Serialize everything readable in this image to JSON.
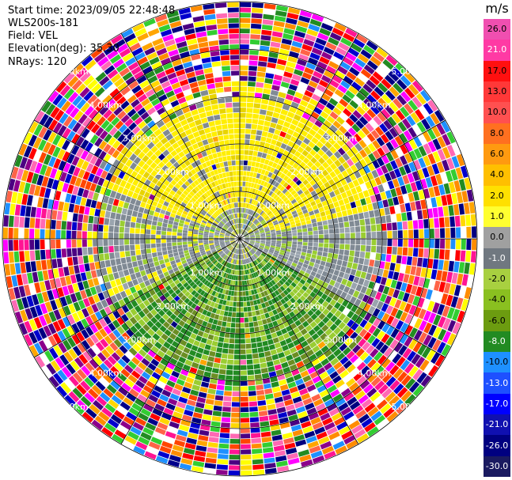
{
  "info": {
    "start_time": "Start time: 2023/09/05 22:48:48",
    "radar": "WLS200s-181",
    "field": "Field: VEL",
    "elevation": "Elevation(deg): 35.30",
    "nrays": "NRays: 120"
  },
  "colorbar": {
    "unit": "m/s",
    "ticks": [
      "26.0",
      "21.0",
      "17.0",
      "13.0",
      "10.0",
      "8.0",
      "6.0",
      "4.0",
      "2.0",
      "1.0",
      "0.0",
      "-1.0",
      "-2.0",
      "-4.0",
      "-6.0",
      "-8.0",
      "-10.0",
      "-13.0",
      "-17.0",
      "-21.0",
      "-26.0",
      "-30.0"
    ],
    "colors": [
      "#f04fb0",
      "#ff3aa4",
      "#ff1010",
      "#ff3838",
      "#ff5050",
      "#ff7020",
      "#ff9a10",
      "#ffbf00",
      "#ffe000",
      "#ffff30",
      "#a0a0a0",
      "#707880",
      "#a8d040",
      "#8ac020",
      "#6c9c10",
      "#228b22",
      "#1e90ff",
      "#1e50ff",
      "#0000ff",
      "#1010b0",
      "#000080",
      "#1a1a60"
    ],
    "text_colors": [
      "#000",
      "#fff",
      "#000",
      "#000",
      "#000",
      "#000",
      "#000",
      "#000",
      "#000",
      "#000",
      "#000",
      "#fff",
      "#000",
      "#000",
      "#000",
      "#fff",
      "#000",
      "#fff",
      "#fff",
      "#fff",
      "#fff",
      "#fff"
    ]
  },
  "range_rings": [
    "1.00km",
    "2.00km",
    "3.00km",
    "4.00km",
    "5.00km"
  ],
  "colors": {
    "yellow": "#ffee00",
    "yellow_dark": "#e8d400",
    "gray": "#808a94",
    "gray_light": "#9aa4ae",
    "light_green": "#9acd32",
    "mid_green": "#6b8e23",
    "dark_green": "#228b22",
    "noise": [
      "#ff1493",
      "#ff69b4",
      "#ff0000",
      "#ff6347",
      "#ff8c00",
      "#ffd700",
      "#ffff00",
      "#32cd32",
      "#228b22",
      "#1e90ff",
      "#0000cd",
      "#000080",
      "#4b0082",
      "#00008b",
      "#ff4500",
      "#ffa500",
      "#ff00ff",
      "#8b008b",
      "#ffffff"
    ]
  }
}
